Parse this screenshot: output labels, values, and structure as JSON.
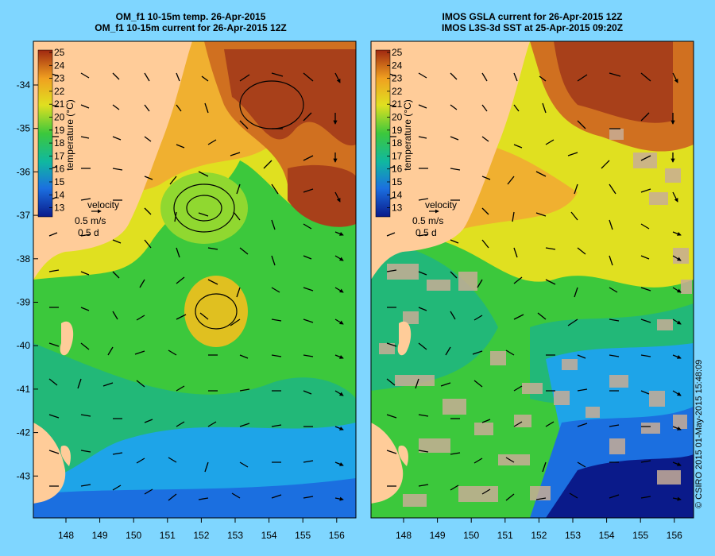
{
  "panels": [
    {
      "title_line1": "OM_f1 10-15m temp. 26-Apr-2015",
      "title_line2": "OM_f1 10-15m current for 26-Apr-2015 12Z",
      "colorbar_label": "temperature (°C)",
      "velocity_label": "velocity",
      "velocity_speed": "0.5 m/s",
      "velocity_time": "0.5 d"
    },
    {
      "title_line1": "IMOS GSLA current for 26-Apr-2015 12Z",
      "title_line2": "IMOS L3S-3d SST at 25-Apr-2015 09:20Z",
      "colorbar_label": "temperature (°C)",
      "velocity_label": "velocity",
      "velocity_speed": "0.5 m/s",
      "velocity_time": "0.5 d"
    }
  ],
  "colorbar_ticks": [
    "25",
    "24",
    "23",
    "22",
    "21",
    "20",
    "19",
    "18",
    "17",
    "16",
    "15",
    "14",
    "13"
  ],
  "lat_ticks": [
    "-34",
    "-35",
    "-36",
    "-37",
    "-38",
    "-39",
    "-40",
    "-41",
    "-42",
    "-43"
  ],
  "lon_ticks": [
    "148",
    "149",
    "150",
    "151",
    "152",
    "153",
    "154",
    "155",
    "156"
  ],
  "copyright": "© CSIRO 2015  01-May-2015 15:48:09",
  "colors": {
    "background": "#7fd6ff",
    "land": "#ffcc99",
    "no_data": "#c8ad96",
    "t13": "#0a1a8a",
    "t15": "#1b6fe0",
    "t17": "#10b8a0",
    "t19": "#3cc83c",
    "t21": "#e0e020",
    "t23": "#f0a020",
    "t25": "#a02810"
  }
}
